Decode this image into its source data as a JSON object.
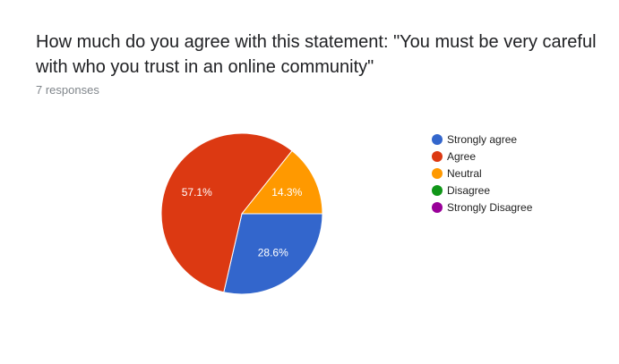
{
  "question": {
    "title": "How much do you agree with this statement: \"You must be very careful with who you trust in an online community\"",
    "responses": "7 responses"
  },
  "chart_data": {
    "type": "pie",
    "title": "How much do you agree with this statement: \"You must be very careful with who you trust in an online community\"",
    "total_responses": 7,
    "legend_position": "right",
    "slices": [
      {
        "name": "Strongly agree",
        "value": 28.6,
        "label": "28.6%",
        "color": "#3366cc"
      },
      {
        "name": "Agree",
        "value": 57.1,
        "label": "57.1%",
        "color": "#dc3912"
      },
      {
        "name": "Neutral",
        "value": 14.3,
        "label": "14.3%",
        "color": "#ff9900"
      },
      {
        "name": "Disagree",
        "value": 0,
        "label": "",
        "color": "#109618"
      },
      {
        "name": "Strongly Disagree",
        "value": 0,
        "label": "",
        "color": "#990099"
      }
    ]
  }
}
